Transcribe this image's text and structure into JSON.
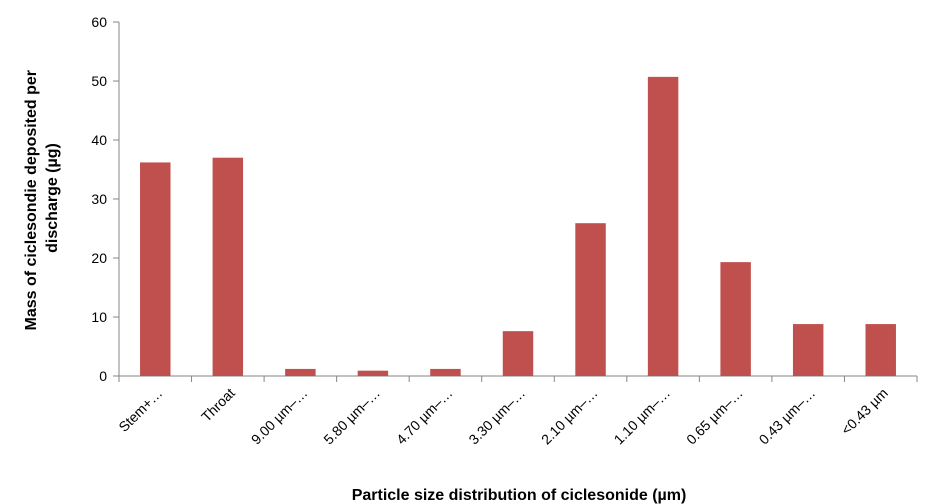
{
  "chart_data": {
    "type": "bar",
    "title": "",
    "xlabel": "Particle size distribution of ciclesonide (µm)",
    "ylabel": "Mass of ciclesondie deposited per discharge (µg)",
    "ylabel_lines": [
      "Mass of ciclesondie deposited per",
      "discharge (µg)"
    ],
    "categories": [
      "Stem+…",
      "Throat",
      "9.00 µm–…",
      "5.80 µm–…",
      "4.70 µm–…",
      "3.30 µm–…",
      "2.10 µm–…",
      "1.10 µm–…",
      "0.65 µm–…",
      "0.43 µm–…",
      "<0.43 µm"
    ],
    "values": [
      36.2,
      37.0,
      1.2,
      0.9,
      1.2,
      7.6,
      25.9,
      50.7,
      19.3,
      8.8,
      8.8
    ],
    "ylim": [
      0,
      60
    ],
    "yticks": [
      0,
      10,
      20,
      30,
      40,
      50,
      60
    ],
    "grid": false,
    "bar_color": "#c0504d",
    "axis_color": "#868686"
  }
}
